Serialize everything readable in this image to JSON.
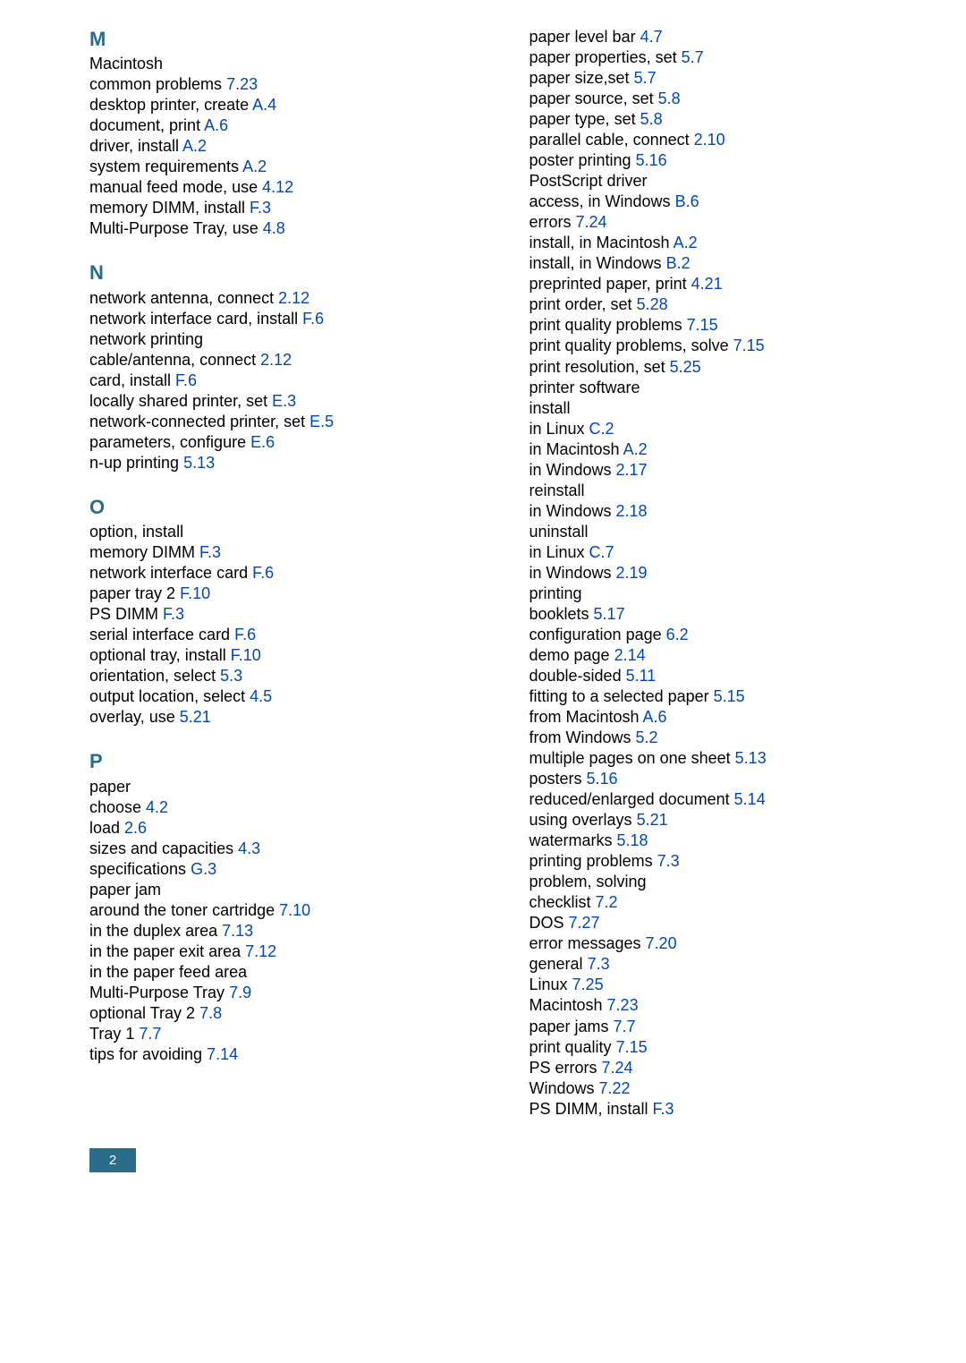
{
  "pageNumber": "2",
  "colors": {
    "heading": "#2a6d88",
    "ref": "#0047b3",
    "text": "#000000",
    "badgeBg": "#2a6d88",
    "badgeText": "#ffffff",
    "background": "#ffffff"
  },
  "typography": {
    "bodyFontSize": 18,
    "headingFontSize": 22,
    "lineHeight": 1.28,
    "indentPxPerLevel": 38
  },
  "columns": {
    "left": [
      {
        "type": "heading",
        "text": "M"
      },
      {
        "indent": 0,
        "text": "Macintosh"
      },
      {
        "indent": 1,
        "text": "common problems ",
        "ref": "7.23"
      },
      {
        "indent": 1,
        "text": "desktop printer, create ",
        "ref": "A.4"
      },
      {
        "indent": 1,
        "text": "document, print ",
        "ref": "A.6"
      },
      {
        "indent": 1,
        "text": "driver, install ",
        "ref": "A.2"
      },
      {
        "indent": 1,
        "text": "system requirements ",
        "ref": "A.2"
      },
      {
        "indent": 0,
        "text": "manual feed mode, use ",
        "ref": "4.12"
      },
      {
        "indent": 0,
        "text": "memory DIMM, install ",
        "ref": "F.3"
      },
      {
        "indent": 0,
        "text": "Multi-Purpose Tray, use ",
        "ref": "4.8"
      },
      {
        "type": "heading",
        "text": "N"
      },
      {
        "indent": 0,
        "text": "network antenna, connect ",
        "ref": "2.12"
      },
      {
        "indent": 0,
        "text": "network interface card, install ",
        "ref": "F.6"
      },
      {
        "indent": 0,
        "text": "network printing"
      },
      {
        "indent": 1,
        "text": "cable/antenna, connect ",
        "ref": "2.12"
      },
      {
        "indent": 1,
        "text": "card, install ",
        "ref": "F.6"
      },
      {
        "indent": 1,
        "text": "locally shared printer, set ",
        "ref": "E.3"
      },
      {
        "indent": 1,
        "text": "network-connected printer, set ",
        "ref": "E.5"
      },
      {
        "indent": 1,
        "text": "parameters, configure ",
        "ref": "E.6"
      },
      {
        "indent": 0,
        "text": "n-up printing ",
        "ref": "5.13"
      },
      {
        "type": "heading",
        "text": "O"
      },
      {
        "indent": 0,
        "text": "option, install"
      },
      {
        "indent": 1,
        "text": "memory DIMM ",
        "ref": "F.3"
      },
      {
        "indent": 1,
        "text": "network interface card ",
        "ref": "F.6"
      },
      {
        "indent": 1,
        "text": "paper tray 2 ",
        "ref": "F.10"
      },
      {
        "indent": 1,
        "text": "PS DIMM ",
        "ref": "F.3"
      },
      {
        "indent": 1,
        "text": "serial interface card ",
        "ref": "F.6"
      },
      {
        "indent": 0,
        "text": "optional tray, install ",
        "ref": "F.10"
      },
      {
        "indent": 0,
        "text": "orientation, select ",
        "ref": "5.3"
      },
      {
        "indent": 0,
        "text": "output location, select ",
        "ref": "4.5"
      },
      {
        "indent": 0,
        "text": "overlay, use ",
        "ref": "5.21"
      },
      {
        "type": "heading",
        "text": "P"
      },
      {
        "indent": 0,
        "text": "paper"
      },
      {
        "indent": 1,
        "text": "choose ",
        "ref": "4.2"
      },
      {
        "indent": 1,
        "text": "load ",
        "ref": "2.6"
      },
      {
        "indent": 1,
        "text": "sizes and capacities ",
        "ref": "4.3"
      },
      {
        "indent": 1,
        "text": "specifications ",
        "ref": "G.3"
      },
      {
        "indent": 0,
        "text": "paper jam"
      },
      {
        "indent": 1,
        "text": "around the toner cartridge ",
        "ref": "7.10"
      },
      {
        "indent": 1,
        "text": "in the duplex area ",
        "ref": "7.13"
      },
      {
        "indent": 1,
        "text": "in the paper exit area ",
        "ref": "7.12"
      },
      {
        "indent": 1,
        "text": "in the paper feed area"
      },
      {
        "indent": 2,
        "text": "Multi-Purpose Tray ",
        "ref": "7.9"
      },
      {
        "indent": 2,
        "text": "optional Tray 2 ",
        "ref": "7.8"
      },
      {
        "indent": 2,
        "text": "Tray 1 ",
        "ref": "7.7"
      },
      {
        "indent": 1,
        "text": "tips for avoiding ",
        "ref": "7.14"
      }
    ],
    "right": [
      {
        "indent": 0,
        "text": "paper level bar ",
        "ref": "4.7"
      },
      {
        "indent": 0,
        "text": "paper properties, set ",
        "ref": "5.7"
      },
      {
        "indent": 0,
        "text": "paper size,set ",
        "ref": "5.7"
      },
      {
        "indent": 0,
        "text": "paper source, set ",
        "ref": "5.8"
      },
      {
        "indent": 0,
        "text": "paper type, set ",
        "ref": "5.8"
      },
      {
        "indent": 0,
        "text": "parallel cable, connect ",
        "ref": "2.10"
      },
      {
        "indent": 0,
        "text": "poster printing ",
        "ref": "5.16"
      },
      {
        "indent": 0,
        "text": "PostScript driver"
      },
      {
        "indent": 1,
        "text": "access, in Windows ",
        "ref": "B.6"
      },
      {
        "indent": 1,
        "text": "errors ",
        "ref": "7.24"
      },
      {
        "indent": 1,
        "text": "install, in Macintosh ",
        "ref": "A.2"
      },
      {
        "indent": 1,
        "text": "install, in Windows ",
        "ref": "B.2"
      },
      {
        "indent": 0,
        "text": "preprinted paper, print ",
        "ref": "4.21"
      },
      {
        "indent": 0,
        "text": "print order, set ",
        "ref": "5.28"
      },
      {
        "indent": 0,
        "text": "print quality problems ",
        "ref": "7.15"
      },
      {
        "indent": 0,
        "text": "print quality problems, solve ",
        "ref": "7.15"
      },
      {
        "indent": 0,
        "text": "print resolution, set ",
        "ref": "5.25"
      },
      {
        "indent": 0,
        "text": "printer software"
      },
      {
        "indent": 1,
        "text": "install"
      },
      {
        "indent": 2,
        "text": "in Linux ",
        "ref": "C.2"
      },
      {
        "indent": 2,
        "text": "in Macintosh ",
        "ref": "A.2"
      },
      {
        "indent": 2,
        "text": "in Windows ",
        "ref": "2.17"
      },
      {
        "indent": 1,
        "text": "reinstall"
      },
      {
        "indent": 2,
        "text": "in Windows ",
        "ref": "2.18"
      },
      {
        "indent": 1,
        "text": "uninstall"
      },
      {
        "indent": 2,
        "text": "in Linux ",
        "ref": "C.7"
      },
      {
        "indent": 2,
        "text": "in Windows ",
        "ref": "2.19"
      },
      {
        "indent": 0,
        "text": "printing"
      },
      {
        "indent": 1,
        "text": "booklets ",
        "ref": "5.17"
      },
      {
        "indent": 1,
        "text": "configuration page ",
        "ref": "6.2"
      },
      {
        "indent": 1,
        "text": "demo page ",
        "ref": "2.14"
      },
      {
        "indent": 1,
        "text": "double-sided ",
        "ref": "5.11"
      },
      {
        "indent": 1,
        "text": "fitting to a selected paper ",
        "ref": "5.15"
      },
      {
        "indent": 1,
        "text": "from Macintosh ",
        "ref": "A.6"
      },
      {
        "indent": 1,
        "text": "from Windows ",
        "ref": "5.2"
      },
      {
        "indent": 1,
        "text": "multiple pages on one sheet ",
        "ref": "5.13"
      },
      {
        "indent": 1,
        "text": "posters ",
        "ref": "5.16"
      },
      {
        "indent": 1,
        "text": "reduced/enlarged document ",
        "ref": "5.14"
      },
      {
        "indent": 1,
        "text": "using overlays ",
        "ref": "5.21"
      },
      {
        "indent": 1,
        "text": "watermarks ",
        "ref": "5.18"
      },
      {
        "indent": 0,
        "text": "printing problems ",
        "ref": "7.3"
      },
      {
        "indent": 0,
        "text": "problem, solving"
      },
      {
        "indent": 1,
        "text": "checklist ",
        "ref": "7.2"
      },
      {
        "indent": 1,
        "text": "DOS ",
        "ref": "7.27"
      },
      {
        "indent": 1,
        "text": "error messages ",
        "ref": "7.20"
      },
      {
        "indent": 1,
        "text": "general ",
        "ref": "7.3"
      },
      {
        "indent": 1,
        "text": "Linux ",
        "ref": "7.25"
      },
      {
        "indent": 1,
        "text": "Macintosh ",
        "ref": "7.23"
      },
      {
        "indent": 1,
        "text": "paper jams ",
        "ref": "7.7"
      },
      {
        "indent": 1,
        "text": "print quality ",
        "ref": "7.15"
      },
      {
        "indent": 1,
        "text": "PS errors ",
        "ref": "7.24"
      },
      {
        "indent": 1,
        "text": "Windows ",
        "ref": "7.22"
      },
      {
        "indent": 0,
        "text": "PS DIMM, install ",
        "ref": "F.3"
      }
    ]
  }
}
